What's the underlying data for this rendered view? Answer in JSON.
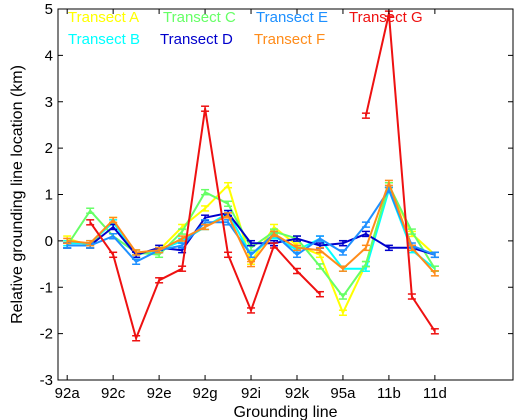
{
  "chart_data": {
    "type": "line",
    "xlabel": "Grounding line",
    "ylabel": "Relative grounding line location (km)",
    "ylim": [
      -3,
      5
    ],
    "yticks": [
      -3,
      -2,
      -1,
      0,
      1,
      2,
      3,
      4,
      5
    ],
    "xlim": [
      0.6,
      20.4
    ],
    "xticks": [
      {
        "x": 1,
        "label": "92a"
      },
      {
        "x": 3,
        "label": "92c"
      },
      {
        "x": 5,
        "label": "92e"
      },
      {
        "x": 7,
        "label": "92g"
      },
      {
        "x": 9,
        "label": "92i"
      },
      {
        "x": 11,
        "label": "92k"
      },
      {
        "x": 13,
        "label": "95a"
      },
      {
        "x": 15,
        "label": "11b"
      },
      {
        "x": 17,
        "label": "11d"
      }
    ],
    "grid": false,
    "legend_position": "top",
    "series": [
      {
        "name": "Transect A",
        "color": "#ffff00",
        "points": [
          [
            1,
            0.05
          ],
          [
            2,
            -0.1
          ],
          [
            3,
            0.45
          ],
          [
            4,
            -0.3
          ],
          [
            5,
            -0.2
          ],
          [
            6,
            0.3
          ],
          [
            7,
            0.7
          ],
          [
            8,
            1.2
          ],
          [
            9,
            -0.45
          ],
          [
            10,
            0.3
          ],
          [
            11,
            -0.1
          ],
          [
            12,
            -0.3
          ],
          [
            13,
            -1.55
          ],
          [
            14,
            -0.5
          ],
          [
            15,
            1.2
          ],
          [
            16,
            0.15
          ],
          [
            17,
            -0.3
          ]
        ]
      },
      {
        "name": "Transect B",
        "color": "#00ffff",
        "points": [
          [
            1,
            -0.05
          ],
          [
            2,
            -0.05
          ],
          [
            3,
            0.4
          ],
          [
            4,
            -0.3
          ],
          [
            5,
            -0.2
          ],
          [
            6,
            0.0
          ],
          [
            7,
            0.3
          ],
          [
            8,
            0.6
          ],
          [
            9,
            -0.3
          ],
          [
            10,
            0.1
          ],
          [
            11,
            -0.2
          ],
          [
            12,
            0.05
          ],
          [
            13,
            -0.6
          ],
          [
            14,
            -0.6
          ],
          [
            15,
            1.1
          ],
          [
            16,
            -0.2
          ],
          [
            17,
            -0.6
          ]
        ]
      },
      {
        "name": "Transect C",
        "color": "#66ff66",
        "points": [
          [
            1,
            -0.1
          ],
          [
            2,
            0.65
          ],
          [
            3,
            0.1
          ],
          [
            4,
            -0.25
          ],
          [
            5,
            -0.3
          ],
          [
            6,
            0.2
          ],
          [
            7,
            1.05
          ],
          [
            8,
            0.8
          ],
          [
            9,
            -0.15
          ],
          [
            10,
            0.2
          ],
          [
            11,
            0.05
          ],
          [
            12,
            -0.55
          ],
          [
            13,
            -1.2
          ],
          [
            14,
            -0.5
          ],
          [
            15,
            1.2
          ],
          [
            16,
            0.2
          ],
          [
            17,
            -0.6
          ]
        ]
      },
      {
        "name": "Transect D",
        "color": "#0000cc",
        "points": [
          [
            1,
            -0.1
          ],
          [
            2,
            -0.1
          ],
          [
            3,
            0.3
          ],
          [
            4,
            -0.3
          ],
          [
            5,
            -0.15
          ],
          [
            6,
            -0.2
          ],
          [
            7,
            0.5
          ],
          [
            8,
            0.6
          ],
          [
            9,
            -0.05
          ],
          [
            10,
            -0.05
          ],
          [
            11,
            0.05
          ],
          [
            12,
            -0.1
          ],
          [
            13,
            -0.05
          ],
          [
            14,
            0.15
          ],
          [
            15,
            -0.15
          ],
          [
            16,
            -0.15
          ],
          [
            17,
            -0.3
          ]
        ]
      },
      {
        "name": "Transect E",
        "color": "#1e90ff",
        "points": [
          [
            1,
            -0.1
          ],
          [
            2,
            -0.1
          ],
          [
            3,
            0.1
          ],
          [
            4,
            -0.45
          ],
          [
            5,
            -0.2
          ],
          [
            6,
            -0.1
          ],
          [
            7,
            0.4
          ],
          [
            8,
            0.4
          ],
          [
            9,
            -0.3
          ],
          [
            10,
            0.15
          ],
          [
            11,
            -0.3
          ],
          [
            12,
            0.05
          ],
          [
            13,
            -0.25
          ],
          [
            14,
            0.35
          ],
          [
            15,
            1.1
          ],
          [
            16,
            -0.1
          ],
          [
            17,
            -0.3
          ]
        ]
      },
      {
        "name": "Transect F",
        "color": "#ff8c1a",
        "points": [
          [
            1,
            0.0
          ],
          [
            2,
            -0.05
          ],
          [
            3,
            0.45
          ],
          [
            4,
            -0.25
          ],
          [
            5,
            -0.2
          ],
          [
            6,
            0.05
          ],
          [
            7,
            0.3
          ],
          [
            8,
            0.55
          ],
          [
            9,
            -0.5
          ],
          [
            10,
            0.15
          ],
          [
            11,
            -0.15
          ],
          [
            12,
            -0.2
          ],
          [
            13,
            -0.6
          ],
          [
            14,
            -0.15
          ],
          [
            15,
            1.25
          ],
          [
            16,
            -0.15
          ],
          [
            17,
            -0.7
          ]
        ]
      },
      {
        "name": "Transect G",
        "color": "#ee1111",
        "points": [
          [
            2,
            0.4
          ],
          [
            3,
            -0.3
          ],
          [
            4,
            -2.1
          ],
          [
            5,
            -0.85
          ],
          [
            6,
            -0.6
          ],
          [
            7,
            2.85
          ],
          [
            8,
            -0.3
          ],
          [
            9,
            -1.5
          ],
          [
            10,
            -0.1
          ],
          [
            11,
            -0.65
          ],
          [
            12,
            -1.15
          ],
          [
            null,
            null
          ],
          [
            14,
            2.7
          ],
          [
            15,
            4.9
          ],
          [
            16,
            -1.2
          ],
          [
            17,
            -1.95
          ]
        ]
      }
    ]
  }
}
